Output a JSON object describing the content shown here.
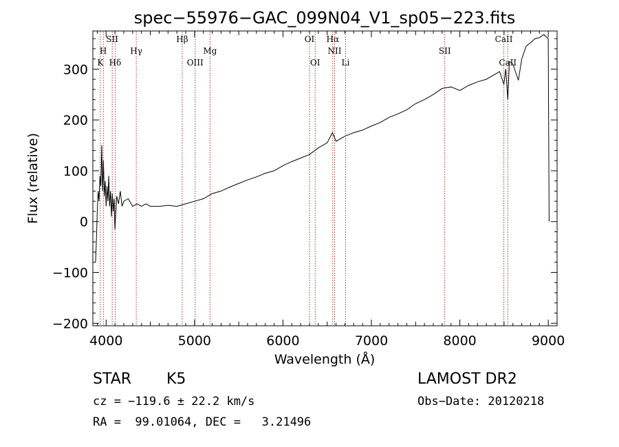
{
  "chart_data": {
    "type": "line",
    "title": "spec−55976−GAC_099N04_V1_sp05−223.fits",
    "xlabel": "Wavelength (Å)",
    "ylabel": "Flux (relative)",
    "xlim": [
      3850,
      9100
    ],
    "ylim": [
      -205,
      375
    ],
    "x_ticks": [
      4000,
      5000,
      6000,
      7000,
      8000,
      9000
    ],
    "x_tick_labels": [
      "4000",
      "5000",
      "6000",
      "7000",
      "8000",
      "9000"
    ],
    "y_ticks": [
      -200,
      -100,
      0,
      100,
      200,
      300
    ],
    "y_tick_labels": [
      "−200",
      "−100",
      "0",
      "100",
      "200",
      "300"
    ],
    "grid": false,
    "line_color": "#000000",
    "marker_color": "#8b1a1a",
    "series": [
      {
        "x": [
          3880,
          3890,
          3900,
          3910,
          3920,
          3930,
          3940,
          3950,
          3960,
          3970,
          3980,
          3990,
          4000,
          4010,
          4020,
          4030,
          4040,
          4050,
          4060,
          4070,
          4080,
          4090,
          4100,
          4120,
          4140,
          4160,
          4180,
          4200,
          4250,
          4300,
          4350,
          4400,
          4450,
          4500,
          4600,
          4700,
          4800,
          4900,
          5000,
          5100,
          5200,
          5300,
          5400,
          5500,
          5600,
          5700,
          5800,
          5900,
          6000,
          6100,
          6200,
          6300,
          6400,
          6500,
          6560,
          6600,
          6700,
          6800,
          6900,
          7000,
          7100,
          7200,
          7300,
          7400,
          7500,
          7600,
          7700,
          7800,
          7900,
          8000,
          8100,
          8200,
          8300,
          8400,
          8450,
          8498,
          8520,
          8542,
          8560,
          8600,
          8662,
          8700,
          8750,
          8800,
          8850,
          8900,
          8950,
          9000,
          9010
        ],
        "y": [
          -80,
          -40,
          20,
          60,
          40,
          90,
          70,
          150,
          60,
          120,
          50,
          80,
          30,
          70,
          40,
          90,
          30,
          60,
          10,
          55,
          20,
          45,
          -15,
          50,
          35,
          60,
          30,
          40,
          45,
          30,
          35,
          30,
          35,
          30,
          30,
          32,
          30,
          35,
          40,
          45,
          55,
          60,
          68,
          75,
          82,
          88,
          95,
          100,
          110,
          118,
          125,
          132,
          145,
          155,
          175,
          158,
          168,
          175,
          180,
          188,
          195,
          205,
          212,
          220,
          232,
          240,
          250,
          262,
          265,
          258,
          268,
          275,
          280,
          290,
          295,
          270,
          300,
          240,
          315,
          310,
          278,
          320,
          345,
          352,
          360,
          362,
          368,
          360,
          0
        ]
      }
    ],
    "line_markers": [
      {
        "label": "K",
        "x": 3934,
        "row": 3
      },
      {
        "label": "H",
        "x": 3968,
        "row": 2
      },
      {
        "label": "SII",
        "x": 4069,
        "row": 1
      },
      {
        "label": "Hδ",
        "x": 4102,
        "row": 3
      },
      {
        "label": "Hγ",
        "x": 4341,
        "row": 2
      },
      {
        "label": "Hβ",
        "x": 4861,
        "row": 1
      },
      {
        "label": "OIII",
        "x": 5007,
        "row": 3
      },
      {
        "label": "Mg",
        "x": 5175,
        "row": 2
      },
      {
        "label": "OI",
        "x": 6300,
        "row": 1
      },
      {
        "label": "OI",
        "x": 6364,
        "row": 3
      },
      {
        "label": "Hα",
        "x": 6563,
        "row": 1
      },
      {
        "label": "NII",
        "x": 6584,
        "row": 2
      },
      {
        "label": "Li",
        "x": 6708,
        "row": 3
      },
      {
        "label": "SII",
        "x": 7830,
        "row": 2
      },
      {
        "label": "CaII",
        "x": 8498,
        "row": 1
      },
      {
        "label": "CaII",
        "x": 8542,
        "row": 3
      }
    ]
  },
  "info": {
    "class_label": "STAR",
    "subclass_label": "K5",
    "survey_label": "LAMOST DR2",
    "cz_text": "cz = −119.6 ± 22.2 km/s",
    "obs_date_text": "Obs−Date: 20120218",
    "radec_text": "RA =  99.01064, DEC =   3.21496"
  }
}
